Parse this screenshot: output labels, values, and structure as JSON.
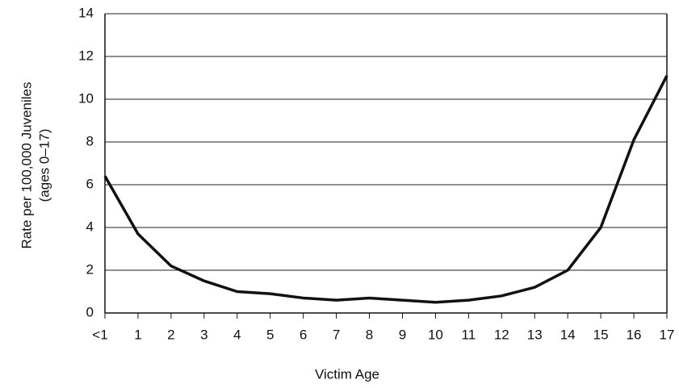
{
  "chart_data": {
    "type": "line",
    "xlabel": "Victim Age",
    "ylabel": [
      "Rate per 100,000 Juveniles",
      "(ages 0–17)"
    ],
    "categories": [
      "<1",
      "1",
      "2",
      "3",
      "4",
      "5",
      "6",
      "7",
      "8",
      "9",
      "10",
      "11",
      "12",
      "13",
      "14",
      "15",
      "16",
      "17"
    ],
    "values": [
      6.4,
      3.7,
      2.2,
      1.5,
      1.0,
      0.9,
      0.7,
      0.6,
      0.7,
      0.6,
      0.5,
      0.6,
      0.8,
      1.2,
      2.0,
      4.0,
      8.1,
      11.1
    ],
    "color": "#111111",
    "ylim": [
      0,
      14
    ],
    "yticks": [
      0,
      2,
      4,
      6,
      8,
      10,
      12,
      14
    ],
    "grid": true
  }
}
